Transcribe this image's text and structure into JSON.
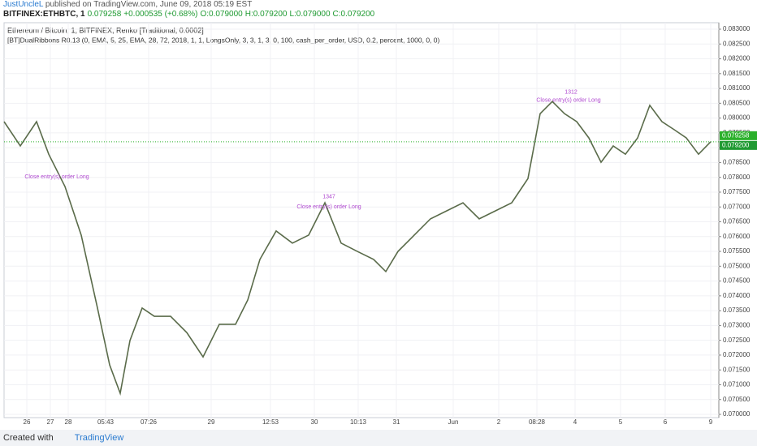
{
  "header": {
    "author": "JustUncleL",
    "published": "published on TradingView.com, June 09, 2018 05:19 EST",
    "symbol": "BITFINEX:ETHBTC, 1",
    "last": "0.079258",
    "change": "+0.000535 (+0.68%)",
    "open": "O:0.079000",
    "high": "H:0.079200",
    "low": "L:0.079000",
    "close": "C:0.079200"
  },
  "footer": {
    "created": "Created with",
    "brand": "TradingView"
  },
  "chart_data": {
    "type": "line",
    "title": "Ethereum / Bitcoin, 1, BITFINEX, Renko [Traditional, 0.0002]",
    "subtitle": "[BT]DualRibbons R0.13 (0, EMA, 5, 25, EMA, 28, 72, 2018, 1, 1, LongsOnly, 3, 3, 1, 3, 0, 100, cash_per_order, USD, 0.2, percent, 1000, 0, 0)",
    "last_price_label": "0.079258",
    "close_price_label": "0.079200",
    "x": [
      0,
      20,
      40,
      55,
      75,
      95,
      115,
      130,
      143,
      155,
      170,
      185,
      205,
      225,
      245,
      265,
      285,
      300,
      315,
      335,
      355,
      375,
      395,
      415,
      435,
      455,
      470,
      485,
      505,
      525,
      545,
      565,
      585,
      605,
      625,
      645,
      660,
      675,
      690,
      705,
      720,
      735,
      750,
      765,
      780,
      795,
      810,
      825,
      840,
      855,
      870
    ],
    "series": [
      {
        "color": "#5a6b4a",
        "values": [
          0.07988,
          0.07906,
          0.07988,
          0.07878,
          0.07769,
          0.07605,
          0.07359,
          0.07167,
          0.07071,
          0.07249,
          0.07359,
          0.07331,
          0.07331,
          0.07276,
          0.07194,
          0.07304,
          0.07304,
          0.07386,
          0.07523,
          0.07619,
          0.07578,
          0.07605,
          0.07714,
          0.07578,
          0.0755,
          0.07523,
          0.07482,
          0.0755,
          0.07605,
          0.0766,
          0.07687,
          0.07714,
          0.0766,
          0.07687,
          0.07714,
          0.07796,
          0.08015,
          0.08056,
          0.08015,
          0.07988,
          0.07933,
          0.07851,
          0.07906,
          0.07878,
          0.07933,
          0.08043,
          0.07988,
          0.07961,
          0.07933,
          0.07878,
          0.0792
        ]
      }
    ],
    "annotations": [
      {
        "text": "Close entry(s) order Long",
        "x": 65,
        "y": 0.07802
      },
      {
        "text": "Close entry(s) order Long",
        "x": 400,
        "y": 0.077
      },
      {
        "text": "1347",
        "x": 400,
        "y": 0.07735
      },
      {
        "text": "Close entry(s) order Long",
        "x": 695,
        "y": 0.0806
      },
      {
        "text": "1312",
        "x": 698,
        "y": 0.08087
      }
    ],
    "xlim": [
      0,
      880
    ],
    "ylim": [
      0.07,
      0.083
    ],
    "grid": true,
    "xticks": [
      {
        "value": 28,
        "label": "26"
      },
      {
        "value": 57,
        "label": "27"
      },
      {
        "value": 79,
        "label": "28"
      },
      {
        "value": 125,
        "label": "05:43"
      },
      {
        "value": 178,
        "label": "07:26"
      },
      {
        "value": 255,
        "label": "29"
      },
      {
        "value": 328,
        "label": "12:53"
      },
      {
        "value": 382,
        "label": "30"
      },
      {
        "value": 436,
        "label": "10:13"
      },
      {
        "value": 483,
        "label": "31"
      },
      {
        "value": 553,
        "label": "Jun"
      },
      {
        "value": 609,
        "label": "2"
      },
      {
        "value": 656,
        "label": "08:28"
      },
      {
        "value": 703,
        "label": "4"
      },
      {
        "value": 759,
        "label": "5"
      },
      {
        "value": 814,
        "label": "6"
      },
      {
        "value": 870,
        "label": "9"
      }
    ],
    "yticks": [
      {
        "value": 0.07,
        "label": "0.070000"
      },
      {
        "value": 0.0705,
        "label": "0.070500"
      },
      {
        "value": 0.071,
        "label": "0.071000"
      },
      {
        "value": 0.0715,
        "label": "0.071500"
      },
      {
        "value": 0.072,
        "label": "0.072000"
      },
      {
        "value": 0.0725,
        "label": "0.072500"
      },
      {
        "value": 0.073,
        "label": "0.073000"
      },
      {
        "value": 0.0735,
        "label": "0.073500"
      },
      {
        "value": 0.074,
        "label": "0.074000"
      },
      {
        "value": 0.0745,
        "label": "0.074500"
      },
      {
        "value": 0.075,
        "label": "0.075000"
      },
      {
        "value": 0.0755,
        "label": "0.075500"
      },
      {
        "value": 0.076,
        "label": "0.076000"
      },
      {
        "value": 0.0765,
        "label": "0.076500"
      },
      {
        "value": 0.077,
        "label": "0.077000"
      },
      {
        "value": 0.0775,
        "label": "0.077500"
      },
      {
        "value": 0.078,
        "label": "0.078000"
      },
      {
        "value": 0.0785,
        "label": "0.078500"
      },
      {
        "value": 0.079,
        "label": "0.079000"
      },
      {
        "value": 0.0795,
        "label": "0.079500"
      },
      {
        "value": 0.08,
        "label": "0.080000"
      },
      {
        "value": 0.0805,
        "label": "0.080500"
      },
      {
        "value": 0.081,
        "label": "0.081000"
      },
      {
        "value": 0.0815,
        "label": "0.081500"
      },
      {
        "value": 0.082,
        "label": "0.082000"
      },
      {
        "value": 0.0825,
        "label": "0.082500"
      },
      {
        "value": 0.083,
        "label": "0.083000"
      }
    ]
  }
}
